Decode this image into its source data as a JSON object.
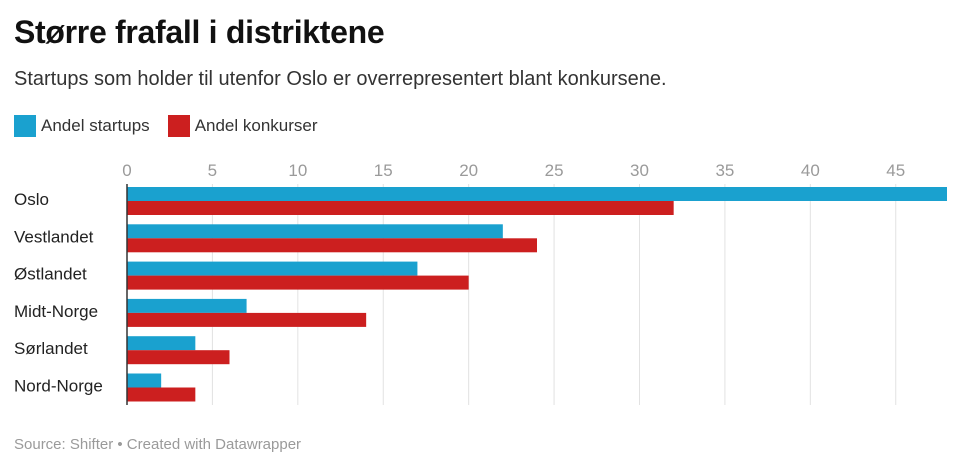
{
  "title": "Større frafall i distriktene",
  "subtitle": "Startups som holder til utenfor Oslo er overrepresentert blant konkursene.",
  "footer": "Source: Shifter • Created with Datawrapper",
  "legend": [
    {
      "label": "Andel startups",
      "color": "#1aa1cf"
    },
    {
      "label": "Andel konkurser",
      "color": "#cc1f1f"
    }
  ],
  "chart_data": {
    "type": "bar",
    "orientation": "horizontal",
    "categories": [
      "Oslo",
      "Vestlandet",
      "Østlandet",
      "Midt-Norge",
      "Sørlandet",
      "Nord-Norge"
    ],
    "series": [
      {
        "name": "Andel startups",
        "color": "#1aa1cf",
        "values": [
          48,
          22,
          17,
          7,
          4,
          2
        ]
      },
      {
        "name": "Andel konkurser",
        "color": "#cc1f1f",
        "values": [
          32,
          24,
          20,
          14,
          6,
          4
        ]
      }
    ],
    "ticks": [
      0,
      5,
      10,
      15,
      20,
      25,
      30,
      35,
      40,
      45
    ],
    "xlim": [
      0,
      48
    ],
    "grid": true,
    "legend_position": "top-left"
  }
}
